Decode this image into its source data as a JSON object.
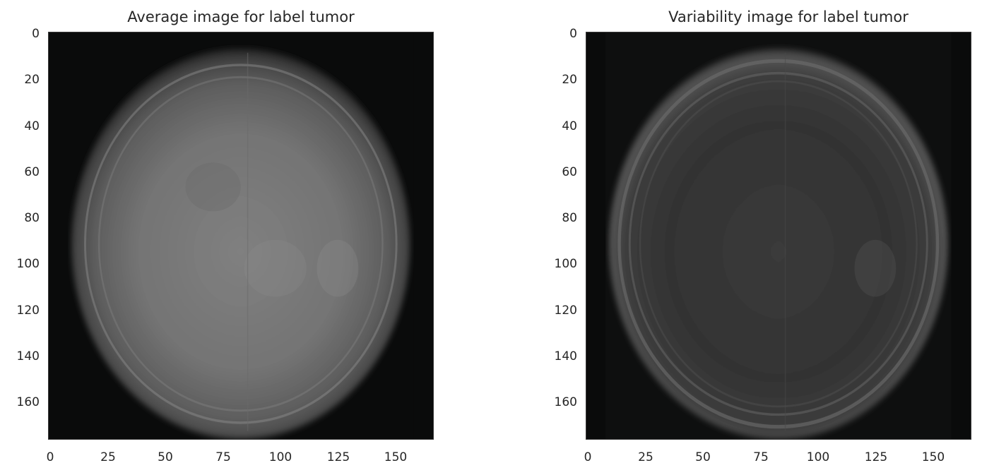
{
  "panels": [
    {
      "title": "Average image for label tumor",
      "ytick_labels": [
        "0",
        "20",
        "40",
        "60",
        "80",
        "100",
        "120",
        "140",
        "160"
      ],
      "xtick_labels": [
        "0",
        "25",
        "50",
        "75",
        "100",
        "125",
        "150"
      ]
    },
    {
      "title": "Variability image for label tumor",
      "ytick_labels": [
        "0",
        "20",
        "40",
        "60",
        "80",
        "100",
        "120",
        "140",
        "160"
      ],
      "xtick_labels": [
        "0",
        "25",
        "50",
        "75",
        "100",
        "125",
        "150"
      ]
    }
  ],
  "colors": {
    "background": "#ffffff",
    "text": "#262626",
    "image_dark": "#0a0b0b",
    "average_tissue": "#7a7a7a",
    "variability_tissue": "#3a3a3a"
  }
}
